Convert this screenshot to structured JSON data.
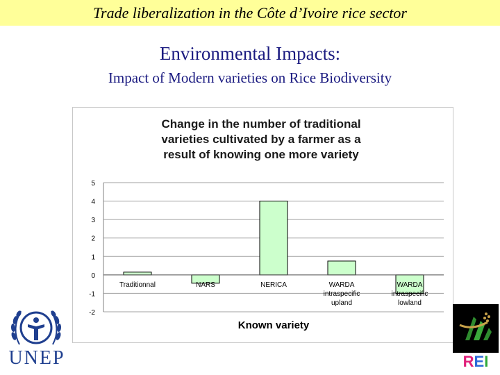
{
  "header": {
    "banner_title": "Trade liberalization in the Côte d’Ivoire rice sector",
    "heading": "Environmental Impacts:",
    "subheading": "Impact of Modern varieties on Rice Biodiversity"
  },
  "logos": {
    "left_text": "UNEP",
    "right_text": "REI"
  },
  "colors": {
    "banner": "#ffff99",
    "heading_text": "#1a1a80",
    "bar_fill": "#ccffcc",
    "bar_stroke": "#000000",
    "unep_blue": "#1f3f8f"
  },
  "chart_data": {
    "type": "bar",
    "title_lines": [
      "Change in the number of traditional",
      "varieties cultivated by a farmer as a",
      "result of knowing one more variety"
    ],
    "xlabel": "Known variety",
    "ylabel": "",
    "ylim": [
      -2,
      5
    ],
    "yticks": [
      5,
      4,
      3,
      2,
      1,
      0,
      -1,
      -2
    ],
    "grid": true,
    "legend": "none",
    "categories": [
      [
        "Traditionnal"
      ],
      [
        "NARS"
      ],
      [
        "NERICA"
      ],
      [
        "WARDA",
        "intraspecific",
        "upland"
      ],
      [
        "WARDA",
        "intraspecific",
        "lowland"
      ]
    ],
    "values": [
      0.15,
      -0.45,
      4.0,
      0.75,
      -1.0
    ]
  }
}
